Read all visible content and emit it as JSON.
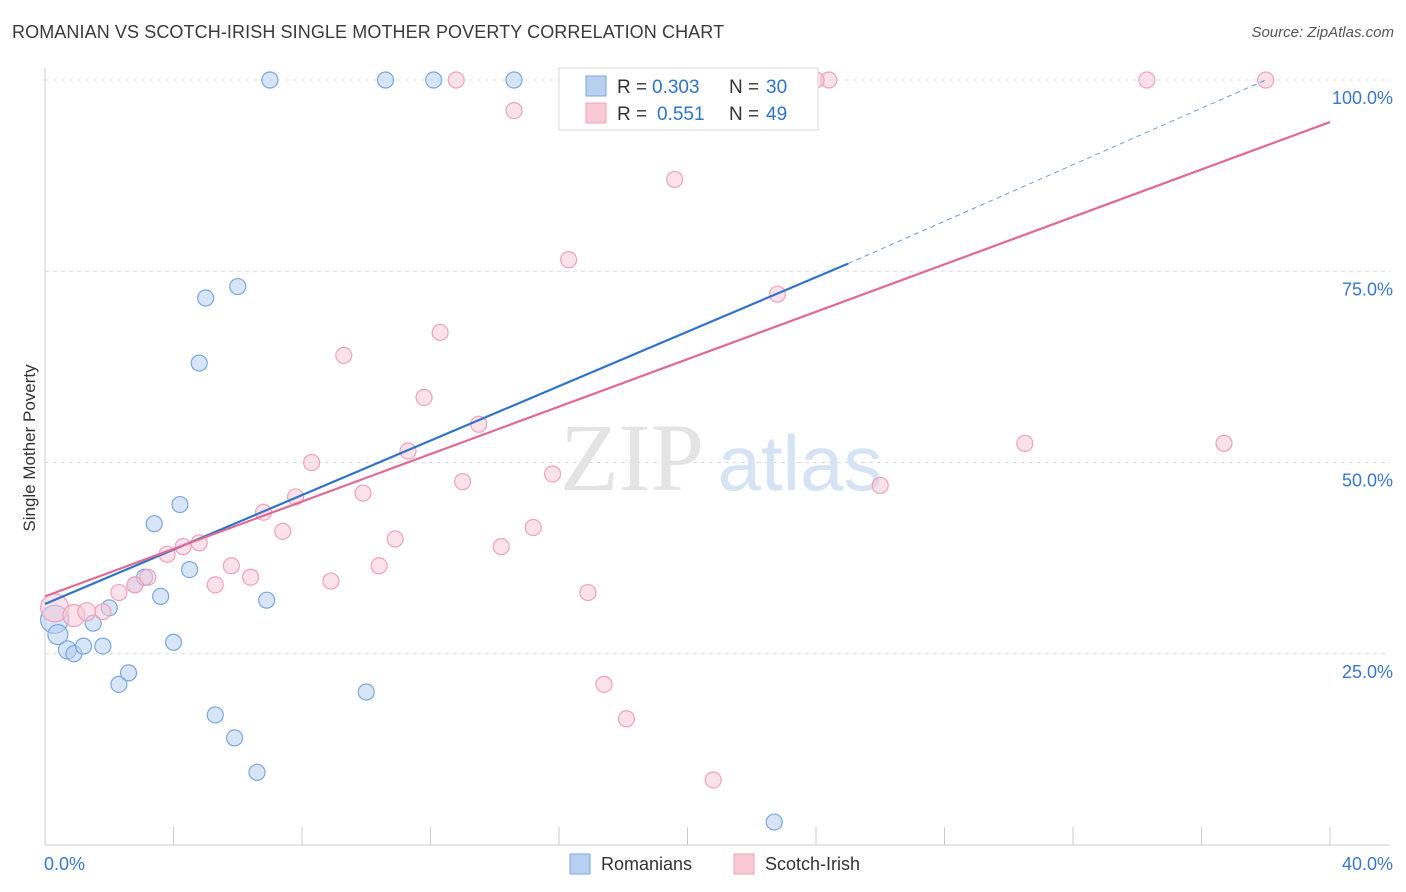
{
  "title": "ROMANIAN VS SCOTCH-IRISH SINGLE MOTHER POVERTY CORRELATION CHART",
  "source": "Source: ZipAtlas.com",
  "watermark": {
    "zip": "ZIP",
    "atlas": "atlas"
  },
  "chart_data": {
    "type": "scatter",
    "ylabel": "Single Mother Poverty",
    "xlim": [
      0,
      40
    ],
    "ylim": [
      0,
      100
    ],
    "x_tick_labels": [
      {
        "value": 0,
        "label": "0.0%"
      },
      {
        "value": 40,
        "label": "40.0%"
      }
    ],
    "y_tick_labels": [
      {
        "value": 25,
        "label": "25.0%"
      },
      {
        "value": 50,
        "label": "50.0%"
      },
      {
        "value": 75,
        "label": "75.0%"
      },
      {
        "value": 100,
        "label": "100.0%"
      }
    ],
    "grid": true,
    "legend_position": "top-center",
    "series": [
      {
        "name": "Romanians",
        "color": "#7aa7e0",
        "fill": "#b8d0f0",
        "line_color": "#2f74c8",
        "R": "0.303",
        "N": "30",
        "trend": {
          "x0": 0,
          "y0": 31.5,
          "x1": 25,
          "y1": 76,
          "dashed_to_x": 38,
          "dashed_to_y": 100
        },
        "points": [
          {
            "x": 0.3,
            "y": 29.5,
            "r": 14
          },
          {
            "x": 0.4,
            "y": 27.5,
            "r": 10
          },
          {
            "x": 0.7,
            "y": 25.5,
            "r": 9
          },
          {
            "x": 0.9,
            "y": 25.0
          },
          {
            "x": 1.2,
            "y": 26.0
          },
          {
            "x": 1.5,
            "y": 29.0
          },
          {
            "x": 1.8,
            "y": 26.0
          },
          {
            "x": 2.0,
            "y": 31.0
          },
          {
            "x": 2.3,
            "y": 21.0
          },
          {
            "x": 2.6,
            "y": 22.5
          },
          {
            "x": 2.8,
            "y": 34.0
          },
          {
            "x": 3.1,
            "y": 35.0
          },
          {
            "x": 3.4,
            "y": 42.0
          },
          {
            "x": 3.6,
            "y": 32.5
          },
          {
            "x": 4.0,
            "y": 26.5
          },
          {
            "x": 4.2,
            "y": 44.5
          },
          {
            "x": 4.5,
            "y": 36.0
          },
          {
            "x": 4.8,
            "y": 63.0
          },
          {
            "x": 5.0,
            "y": 71.5
          },
          {
            "x": 5.3,
            "y": 17.0
          },
          {
            "x": 5.9,
            "y": 14.0
          },
          {
            "x": 6.0,
            "y": 73.0
          },
          {
            "x": 6.6,
            "y": 9.5
          },
          {
            "x": 6.9,
            "y": 32.0
          },
          {
            "x": 7.0,
            "y": 100.0
          },
          {
            "x": 10.0,
            "y": 20.0
          },
          {
            "x": 10.6,
            "y": 100.0
          },
          {
            "x": 12.1,
            "y": 100.0
          },
          {
            "x": 14.6,
            "y": 100.0
          },
          {
            "x": 22.7,
            "y": 3.0
          }
        ]
      },
      {
        "name": "Scotch-Irish",
        "color": "#eea3ba",
        "fill": "#f8c8d7",
        "line_color": "#e06a93",
        "R": "0.551",
        "N": "49",
        "trend": {
          "x0": 0,
          "y0": 32.5,
          "x1": 40,
          "y1": 94.5
        },
        "points": [
          {
            "x": 0.3,
            "y": 31.0,
            "r": 14
          },
          {
            "x": 0.9,
            "y": 30.0,
            "r": 11
          },
          {
            "x": 1.3,
            "y": 30.5,
            "r": 9
          },
          {
            "x": 1.8,
            "y": 30.5
          },
          {
            "x": 2.3,
            "y": 33.0
          },
          {
            "x": 2.8,
            "y": 34.0
          },
          {
            "x": 3.2,
            "y": 35.0
          },
          {
            "x": 3.8,
            "y": 38.0
          },
          {
            "x": 4.3,
            "y": 39.0
          },
          {
            "x": 4.8,
            "y": 39.5
          },
          {
            "x": 5.3,
            "y": 34.0
          },
          {
            "x": 5.8,
            "y": 36.5
          },
          {
            "x": 6.4,
            "y": 35.0
          },
          {
            "x": 6.8,
            "y": 43.5
          },
          {
            "x": 7.4,
            "y": 41.0
          },
          {
            "x": 7.8,
            "y": 45.5
          },
          {
            "x": 8.3,
            "y": 50.0
          },
          {
            "x": 8.9,
            "y": 34.5
          },
          {
            "x": 9.3,
            "y": 64.0
          },
          {
            "x": 9.9,
            "y": 46.0
          },
          {
            "x": 10.4,
            "y": 36.5
          },
          {
            "x": 10.9,
            "y": 40.0
          },
          {
            "x": 11.3,
            "y": 51.5
          },
          {
            "x": 11.8,
            "y": 58.5
          },
          {
            "x": 12.3,
            "y": 67.0
          },
          {
            "x": 12.8,
            "y": 100.0
          },
          {
            "x": 13.0,
            "y": 47.5
          },
          {
            "x": 13.5,
            "y": 55.0
          },
          {
            "x": 14.2,
            "y": 39.0
          },
          {
            "x": 14.6,
            "y": 96.0
          },
          {
            "x": 15.2,
            "y": 41.5
          },
          {
            "x": 15.8,
            "y": 48.5
          },
          {
            "x": 16.3,
            "y": 76.5
          },
          {
            "x": 16.9,
            "y": 33.0
          },
          {
            "x": 17.4,
            "y": 21.0
          },
          {
            "x": 18.1,
            "y": 16.5
          },
          {
            "x": 18.6,
            "y": 100.0
          },
          {
            "x": 19.6,
            "y": 87.0
          },
          {
            "x": 20.8,
            "y": 8.5
          },
          {
            "x": 21.1,
            "y": 100.0
          },
          {
            "x": 21.6,
            "y": 100.0
          },
          {
            "x": 22.8,
            "y": 72.0
          },
          {
            "x": 24.4,
            "y": 100.0
          },
          {
            "x": 26.0,
            "y": 47.0
          },
          {
            "x": 30.5,
            "y": 52.5
          },
          {
            "x": 34.3,
            "y": 100.0
          },
          {
            "x": 36.7,
            "y": 52.5
          },
          {
            "x": 38.0,
            "y": 100.0
          },
          {
            "x": 24.0,
            "y": 100.0
          }
        ]
      }
    ]
  },
  "legend_box": {
    "rows": [
      {
        "r_label": "R = ",
        "r_value": "0.303",
        "n_label": "N = ",
        "n_value": "30"
      },
      {
        "r_label": "R = ",
        "r_value": "0.551",
        "n_label": "N = ",
        "n_value": "49"
      }
    ]
  },
  "bottom_legend": [
    "Romanians",
    "Scotch-Irish"
  ]
}
